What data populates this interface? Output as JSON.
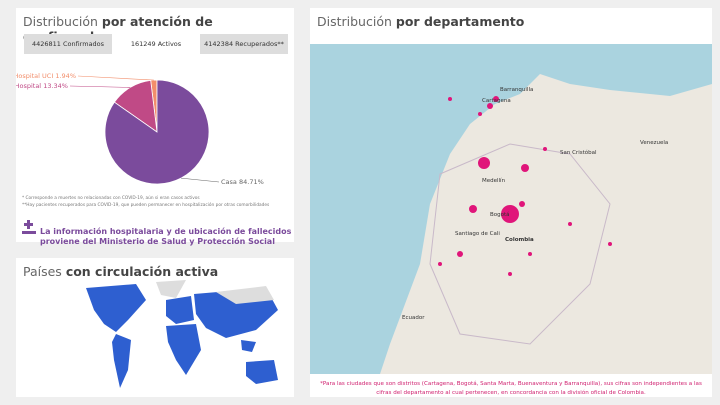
{
  "left_panel": {
    "title_light": "Distribución",
    "title_bold": "por atención de confirmados",
    "tabs": [
      "4426811 Confirmados",
      "161249 Activos",
      "4142384 Recuperados**"
    ],
    "footnotes": [
      "* Corresponde a muertes no relacionadas con COVID-19, aún si eran casos activos",
      "**Hay pacientes recuperados para COVID-19, que pueden permanecer en hospitalización por otras comorbilidades"
    ],
    "info": "La información hospitalaria y de ubicación de fallecidos proviene del Ministerio de Salud y Protección Social"
  },
  "chart_data": {
    "type": "pie",
    "categories": [
      "Hospital UCI",
      "Hospital",
      "Casa"
    ],
    "values": [
      1.94,
      13.34,
      84.71
    ],
    "value_labels": [
      "1.94%",
      "13.34%",
      "84.71%"
    ],
    "colors": [
      "#f28e6b",
      "#c04a86",
      "#7b4b9c"
    ]
  },
  "countries_panel": {
    "title_light": "Países",
    "title_bold": "con circulación activa"
  },
  "map_panel": {
    "title_light": "Distribución",
    "title_bold": "por departamento",
    "labels": [
      "Venezuela",
      "Colombia",
      "Ecuador",
      "Medellín",
      "Bogotá",
      "Santiago de Cali",
      "Barranquilla",
      "Cartagena",
      "San Cristóbal"
    ],
    "note": "*Para las ciudades que son distritos (Cartagena, Bogotá, Santa Marta, Buenaventura y Barranquilla), sus cifras son independientes a las cifras del departamento al cual pertenecen, en concordancia con la división oficial de Colombia."
  }
}
